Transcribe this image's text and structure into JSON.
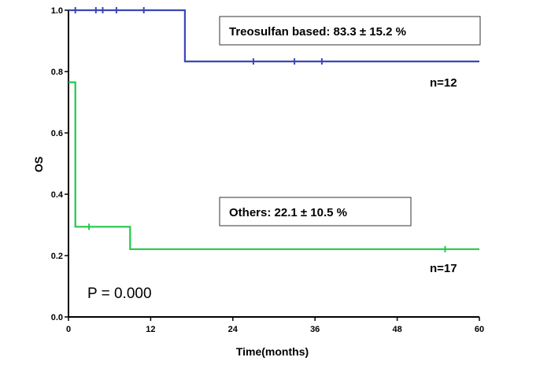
{
  "chart_data": {
    "type": "line",
    "subtype": "kaplan-meier-step",
    "xlabel": "Time(months)",
    "ylabel": "OS",
    "xlim": [
      0,
      60
    ],
    "ylim": [
      0.0,
      1.0
    ],
    "x_ticks": [
      "0",
      "12",
      "24",
      "36",
      "48",
      "60"
    ],
    "y_ticks": [
      "0.0",
      "0.2",
      "0.4",
      "0.6",
      "0.8",
      "1.0"
    ],
    "grid": false,
    "series": [
      {
        "name": "Treosulfan based",
        "color": "#3a47b8",
        "steps": [
          [
            0,
            1.0
          ],
          [
            17,
            1.0
          ],
          [
            17,
            0.833
          ],
          [
            60,
            0.833
          ]
        ],
        "censored": [
          [
            1,
            1.0
          ],
          [
            4,
            1.0
          ],
          [
            5,
            1.0
          ],
          [
            7,
            1.0
          ],
          [
            11,
            1.0
          ],
          [
            27,
            0.833
          ],
          [
            33,
            0.833
          ],
          [
            37,
            0.833
          ]
        ],
        "box_label": "Treosulfan based: 83.3 ± 15.2 %",
        "n_label": "n=12"
      },
      {
        "name": "Others",
        "color": "#22c84a",
        "steps": [
          [
            0,
            0.765
          ],
          [
            1,
            0.765
          ],
          [
            1,
            0.294
          ],
          [
            9,
            0.294
          ],
          [
            9,
            0.221
          ],
          [
            60,
            0.221
          ]
        ],
        "censored": [
          [
            3,
            0.294
          ],
          [
            55,
            0.221
          ]
        ],
        "box_label": "Others: 22.1 ± 10.5 %",
        "n_label": "n=17"
      }
    ],
    "p_value_label": "P = 0.000"
  }
}
